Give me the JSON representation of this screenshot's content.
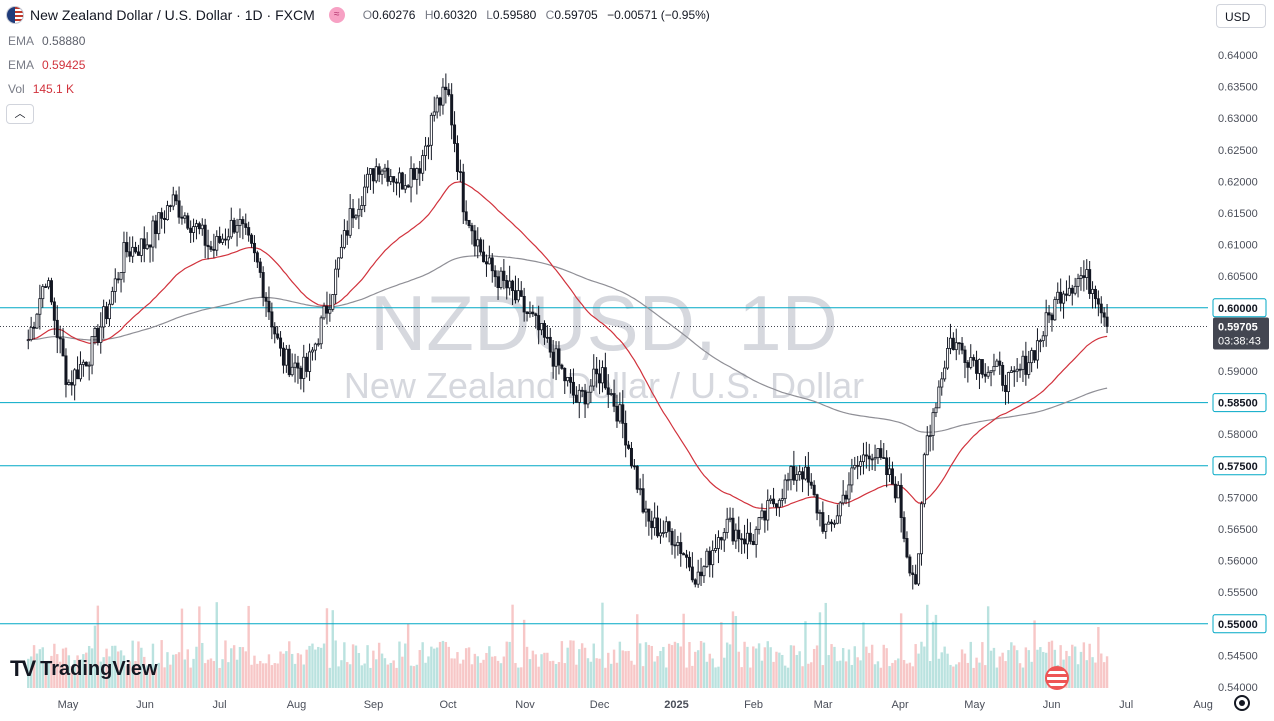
{
  "header": {
    "symbol_title": "New Zealand Dollar / U.S. Dollar · 1D · FXCM",
    "ohlc": {
      "o_label": "O",
      "o": "0.60276",
      "h_label": "H",
      "h": "0.60320",
      "l_label": "L",
      "l": "0.59580",
      "c_label": "C",
      "c": "0.59705",
      "change": "−0.00571 (−0.95%)"
    }
  },
  "indicators": {
    "ema1_label": "EMA",
    "ema1_value": "0.58880",
    "ema2_label": "EMA",
    "ema2_value": "0.59425",
    "vol_label": "Vol",
    "vol_value": "145.1 K"
  },
  "currency": "USD",
  "collapse_icon": "chevron-up-icon",
  "logo_text": "TradingView",
  "watermark": {
    "symbol": "NZDUSD, 1D",
    "name": "New Zealand Dollar / U.S. Dollar"
  },
  "colors": {
    "up": "#131722",
    "down": "#131722",
    "ema_fast": "#d1323c",
    "ema_slow": "#8f8f96",
    "hline": "#00a8c6",
    "vol_up": "#b2dfdb",
    "vol_down": "#f6c1c1",
    "label_bg": "#ffffff",
    "last_label_bg": "#434651"
  },
  "chart_data": {
    "type": "candlestick",
    "y_range": [
      0.54,
      0.64
    ],
    "y_ticks": [
      "0.64000",
      "0.63500",
      "0.63000",
      "0.62500",
      "0.62000",
      "0.61500",
      "0.61000",
      "0.60500",
      "0.60000",
      "0.59500",
      "0.59000",
      "0.58500",
      "0.58000",
      "0.57500",
      "0.57000",
      "0.56500",
      "0.56000",
      "0.55500",
      "0.55000",
      "0.54500",
      "0.54000"
    ],
    "x_ticks": [
      "May",
      "Jun",
      "Jul",
      "Aug",
      "Sep",
      "Oct",
      "Nov",
      "Dec",
      "2025",
      "Feb",
      "Mar",
      "Apr",
      "May",
      "Jun",
      "Jul",
      "Aug"
    ],
    "horizontal_levels": [
      0.6,
      0.585,
      0.575,
      0.55
    ],
    "level_labels": [
      "0.60000",
      "0.58500",
      "0.57500",
      "0.55000"
    ],
    "last_price": 0.59705,
    "last_price_label": "0.59705",
    "countdown": "03:38:43",
    "price_path": [
      [
        "2024-04-15",
        0.595
      ],
      [
        "2024-04-22",
        0.605
      ],
      [
        "2024-05-01",
        0.588
      ],
      [
        "2024-05-10",
        0.593
      ],
      [
        "2024-05-17",
        0.6
      ],
      [
        "2024-05-24",
        0.609
      ],
      [
        "2024-06-01",
        0.61
      ],
      [
        "2024-06-12",
        0.617
      ],
      [
        "2024-06-21",
        0.613
      ],
      [
        "2024-06-28",
        0.609
      ],
      [
        "2024-07-08",
        0.614
      ],
      [
        "2024-07-17",
        0.606
      ],
      [
        "2024-07-26",
        0.592
      ],
      [
        "2024-08-05",
        0.59
      ],
      [
        "2024-08-14",
        0.601
      ],
      [
        "2024-08-23",
        0.615
      ],
      [
        "2024-09-03",
        0.623
      ],
      [
        "2024-09-12",
        0.62
      ],
      [
        "2024-09-20",
        0.623
      ],
      [
        "2024-09-26",
        0.632
      ],
      [
        "2024-10-01",
        0.634
      ],
      [
        "2024-10-07",
        0.617
      ],
      [
        "2024-10-16",
        0.607
      ],
      [
        "2024-10-25",
        0.603
      ],
      [
        "2024-11-04",
        0.598
      ],
      [
        "2024-11-13",
        0.592
      ],
      [
        "2024-11-22",
        0.585
      ],
      [
        "2024-12-02",
        0.59
      ],
      [
        "2024-12-11",
        0.581
      ],
      [
        "2024-12-20",
        0.566
      ],
      [
        "2024-12-31",
        0.564
      ],
      [
        "2025-01-10",
        0.557
      ],
      [
        "2025-01-20",
        0.566
      ],
      [
        "2025-01-31",
        0.563
      ],
      [
        "2025-02-10",
        0.57
      ],
      [
        "2025-02-20",
        0.575
      ],
      [
        "2025-03-03",
        0.564
      ],
      [
        "2025-03-12",
        0.573
      ],
      [
        "2025-03-20",
        0.578
      ],
      [
        "2025-03-31",
        0.571
      ],
      [
        "2025-04-04",
        0.561
      ],
      [
        "2025-04-08",
        0.556
      ],
      [
        "2025-04-11",
        0.578
      ],
      [
        "2025-04-21",
        0.595
      ],
      [
        "2025-04-30",
        0.592
      ],
      [
        "2025-05-09",
        0.59
      ],
      [
        "2025-05-16",
        0.588
      ],
      [
        "2025-05-26",
        0.594
      ],
      [
        "2025-06-05",
        0.603
      ],
      [
        "2025-06-13",
        0.605
      ],
      [
        "2025-06-19",
        0.603
      ],
      [
        "2025-06-24",
        0.597
      ]
    ]
  }
}
